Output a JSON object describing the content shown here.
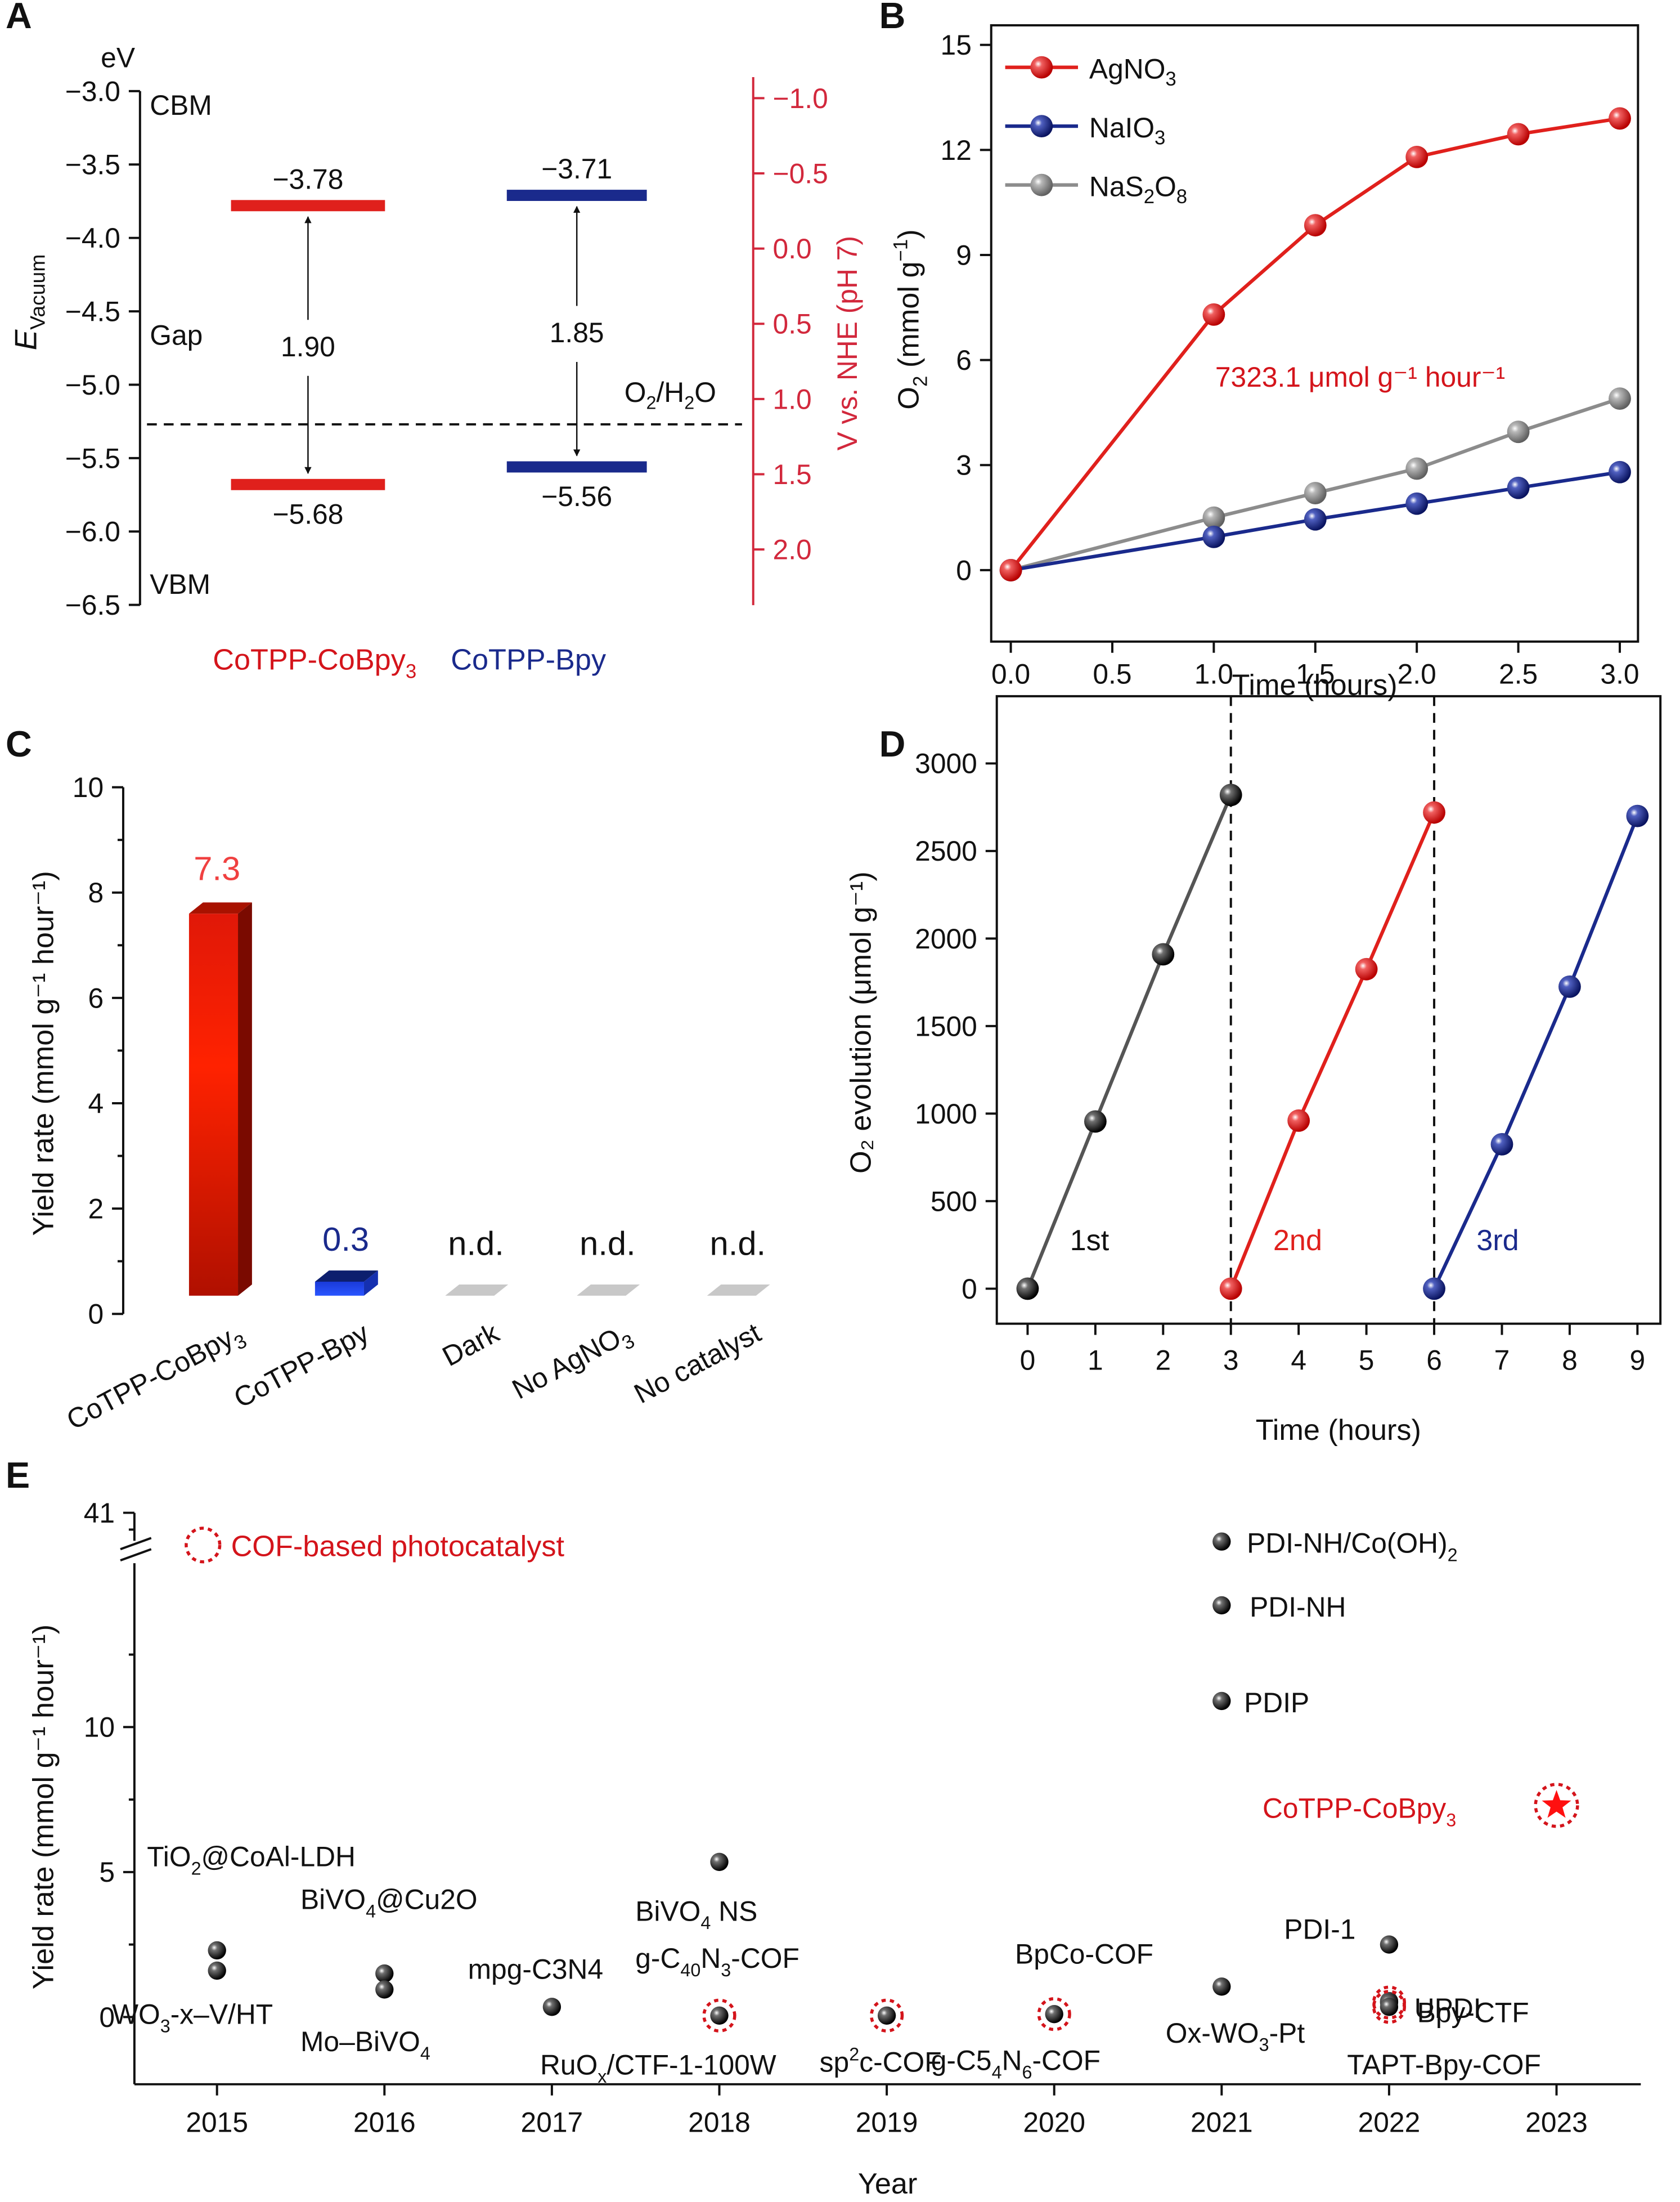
{
  "colors": {
    "red": "#e0201c",
    "dark_red": "#d4141b",
    "navy": "#1a2a8c",
    "gray": "#8c8c8c",
    "black": "#111111",
    "axis_red": "#d2283c",
    "bar_gray": "#c8c8c8",
    "bar_blue": "#1e46f0"
  },
  "chart_data": [
    {
      "panel": "A",
      "type": "diagram",
      "title": "",
      "left_axis": {
        "label": "E_Vacuum",
        "unit": "eV",
        "range": [
          -3.0,
          -6.5
        ],
        "ticks": [
          "-3.0",
          "-3.5",
          "-4.0",
          "-4.5",
          "-5.0",
          "-5.5",
          "-6.0",
          "-6.5"
        ]
      },
      "right_axis": {
        "label": "V vs. NHE (pH 7)",
        "range": [
          -1.0,
          2.0
        ],
        "ticks": [
          "-1.0",
          "-0.5",
          "0.0",
          "0.5",
          "1.0",
          "1.5",
          "2.0"
        ]
      },
      "region_labels": [
        "CBM",
        "Gap",
        "VBM"
      ],
      "reference_line": {
        "label": "O2/H2O",
        "value_ev": -5.27
      },
      "materials": [
        {
          "name": "CoTPP-CoBpy3",
          "color": "red",
          "cbm": -3.78,
          "vbm": -5.68,
          "gap": 1.9,
          "cbm_label": "−3.78",
          "vbm_label": "−5.68",
          "gap_label": "1.90"
        },
        {
          "name": "CoTPP-Bpy",
          "color": "navy",
          "cbm": -3.71,
          "vbm": -5.56,
          "gap": 1.85,
          "cbm_label": "−3.71",
          "vbm_label": "−5.56",
          "gap_label": "1.85"
        }
      ]
    },
    {
      "panel": "B",
      "type": "line",
      "xlabel": "Time (hours)",
      "ylabel": "O2 (mmol g⁻¹)",
      "xlim": [
        -0.1,
        3.1
      ],
      "ylim": [
        -1.5,
        15
      ],
      "xticks": [
        "0.0",
        "0.5",
        "1.0",
        "1.5",
        "2.0",
        "2.5",
        "3.0"
      ],
      "yticks": [
        "0",
        "3",
        "6",
        "9",
        "12",
        "15"
      ],
      "x": [
        0,
        1.0,
        1.5,
        2.0,
        2.5,
        3.0
      ],
      "series": [
        {
          "name": "AgNO3",
          "color": "red",
          "values": [
            0,
            7.3,
            9.85,
            11.8,
            12.45,
            12.9
          ]
        },
        {
          "name": "NaIO3",
          "color": "navy",
          "values": [
            0,
            0.95,
            1.45,
            1.9,
            2.35,
            2.8
          ]
        },
        {
          "name": "NaS2O8",
          "color": "gray",
          "values": [
            0,
            1.5,
            2.2,
            2.9,
            3.95,
            4.9
          ]
        }
      ],
      "legend": "top-left",
      "annotation": "7323.1 μmol g⁻¹ hour⁻¹"
    },
    {
      "panel": "C",
      "type": "bar",
      "ylabel": "Yield rate (mmol g⁻¹ hour⁻¹)",
      "ylim": [
        0,
        10
      ],
      "yticks": [
        "0",
        "2",
        "4",
        "6",
        "8",
        "10"
      ],
      "categories": [
        "CoTPP-CoBpy3",
        "CoTPP-Bpy",
        "Dark",
        "No AgNO3",
        "No catalyst"
      ],
      "values": [
        7.3,
        0.3,
        0,
        0,
        0
      ],
      "data_labels": [
        "7.3",
        "0.3",
        "n.d.",
        "n.d.",
        "n.d."
      ]
    },
    {
      "panel": "D",
      "type": "line",
      "xlabel": "Time (hours)",
      "ylabel": "O2 evolution (μmol g⁻¹)",
      "xlim": [
        -0.5,
        9.5
      ],
      "ylim": [
        -300,
        3100
      ],
      "xticks": [
        "0",
        "1",
        "2",
        "3",
        "4",
        "5",
        "6",
        "7",
        "8",
        "9"
      ],
      "yticks": [
        "0",
        "500",
        "1000",
        "1500",
        "2000",
        "2500",
        "3000"
      ],
      "cycle_dividers": [
        3,
        6
      ],
      "series": [
        {
          "name": "1st",
          "color": "black",
          "x": [
            0,
            1,
            2,
            3
          ],
          "values": [
            0,
            955,
            1910,
            2820
          ]
        },
        {
          "name": "2nd",
          "color": "red",
          "x": [
            3,
            4,
            5,
            6
          ],
          "values": [
            0,
            960,
            1825,
            2720
          ]
        },
        {
          "name": "3rd",
          "color": "navy",
          "x": [
            6,
            7,
            8,
            9
          ],
          "values": [
            0,
            825,
            1725,
            2700
          ]
        }
      ]
    },
    {
      "panel": "E",
      "type": "scatter",
      "xlabel": "Year",
      "ylabel": "Yield rate (mmol g⁻¹ hour⁻¹)",
      "xticks": [
        "2015",
        "2016",
        "2017",
        "2018",
        "2019",
        "2020",
        "2021",
        "2022",
        "2023"
      ],
      "yticks_lower": [
        "0",
        "5",
        "10"
      ],
      "ytick_upper": "41",
      "ylim_lower": [
        -2.5,
        17.5
      ],
      "axis_break": true,
      "legend": {
        "label": "COF-based photocatalyst",
        "placement": "top-left"
      },
      "points": [
        {
          "name": "TiO2@CoAl-LDH",
          "year": 2015,
          "value": 2.3,
          "cof": false
        },
        {
          "name": "WO3-x–V/HT",
          "year": 2015,
          "value": 1.6,
          "cof": false
        },
        {
          "name": "BiVO4@Cu2O",
          "year": 2016,
          "value": 1.5,
          "cof": false
        },
        {
          "name": "Mo–BiVO4",
          "year": 2016,
          "value": 0.95,
          "cof": false
        },
        {
          "name": "mpg-C3N4",
          "year": 2017,
          "value": 0.35,
          "cof": false
        },
        {
          "name": "BiVO4 NS",
          "year": 2018,
          "value": 5.35,
          "cof": false
        },
        {
          "name": "g-C40N3-COF",
          "year": 2018,
          "value": 0.05,
          "cof": true
        },
        {
          "name": "RuOx/CTF-1-100W",
          "year": 2018,
          "value": 0.05,
          "cof": true
        },
        {
          "name": "sp2c-COF",
          "year": 2019,
          "value": 0.05,
          "cof": true
        },
        {
          "name": "BpCo-COF",
          "year": 2020,
          "value": 0.1,
          "cof": true
        },
        {
          "name": "g-C54N6-COF",
          "year": 2020,
          "value": 0.1,
          "cof": true
        },
        {
          "name": "PDI-NH/Co(OH)2",
          "year": 2021,
          "value": 16.4,
          "cof": false
        },
        {
          "name": "PDI-NH",
          "year": 2021,
          "value": 14.2,
          "cof": false
        },
        {
          "name": "PDIP",
          "year": 2021,
          "value": 10.9,
          "cof": false
        },
        {
          "name": "Ox-WO3-Pt",
          "year": 2021,
          "value": 1.05,
          "cof": false
        },
        {
          "name": "PDI-1",
          "year": 2022,
          "value": 2.5,
          "cof": false
        },
        {
          "name": "UPDI",
          "year": 2022,
          "value": 0.55,
          "cof": false
        },
        {
          "name": "Bpy-CTF",
          "year": 2022,
          "value": 0.5,
          "cof": true
        },
        {
          "name": "TAPT-Bpy-COF",
          "year": 2022,
          "value": 0.35,
          "cof": true
        },
        {
          "name": "CoTPP-CoBpy3",
          "year": 2023,
          "value": 7.3,
          "cof": true,
          "highlight": true
        }
      ]
    }
  ],
  "panels": {
    "A": {
      "letter": "A",
      "unit": "eV",
      "ylabel_main": "E",
      "ylabel_sub": "Vacuum",
      "cbm": "CBM",
      "gap": "Gap",
      "vbm": "VBM",
      "ref_main": "O",
      "ref_sub1": "2",
      "ref_mid": "/H",
      "ref_sub2": "2",
      "ref_end": "O",
      "right_label": "V vs. NHE (pH 7)",
      "mat1_main": "CoTPP-CoBpy",
      "mat1_sub": "3",
      "mat2": "CoTPP-Bpy"
    },
    "B": {
      "letter": "B",
      "ylabel_main": "O",
      "ylabel_sub": "2",
      "ylabel_rest": " (mmol g",
      "ylabel_sup": "−1",
      "ylabel_end": ")",
      "legend": [
        {
          "main": "AgNO",
          "sub": "3"
        },
        {
          "main": "NaIO",
          "sub": "3"
        },
        {
          "main": "NaS",
          "sub": "2",
          "mid": "O",
          "sub2": "8"
        }
      ],
      "annotation": "7323.1 μmol g⁻¹ hour⁻¹",
      "xlabel": "Time (hours)"
    },
    "C": {
      "letter": "C",
      "ylabel": "Yield rate (mmol g⁻¹ hour⁻¹)"
    },
    "D": {
      "letter": "D",
      "ylabel": "O₂ evolution (μmol g⁻¹)",
      "xlabel": "Time (hours)"
    },
    "E": {
      "letter": "E",
      "ylabel": "Yield rate (mmol g⁻¹ hour⁻¹)",
      "xlabel": "Year",
      "legend": "COF-based photocatalyst"
    }
  }
}
